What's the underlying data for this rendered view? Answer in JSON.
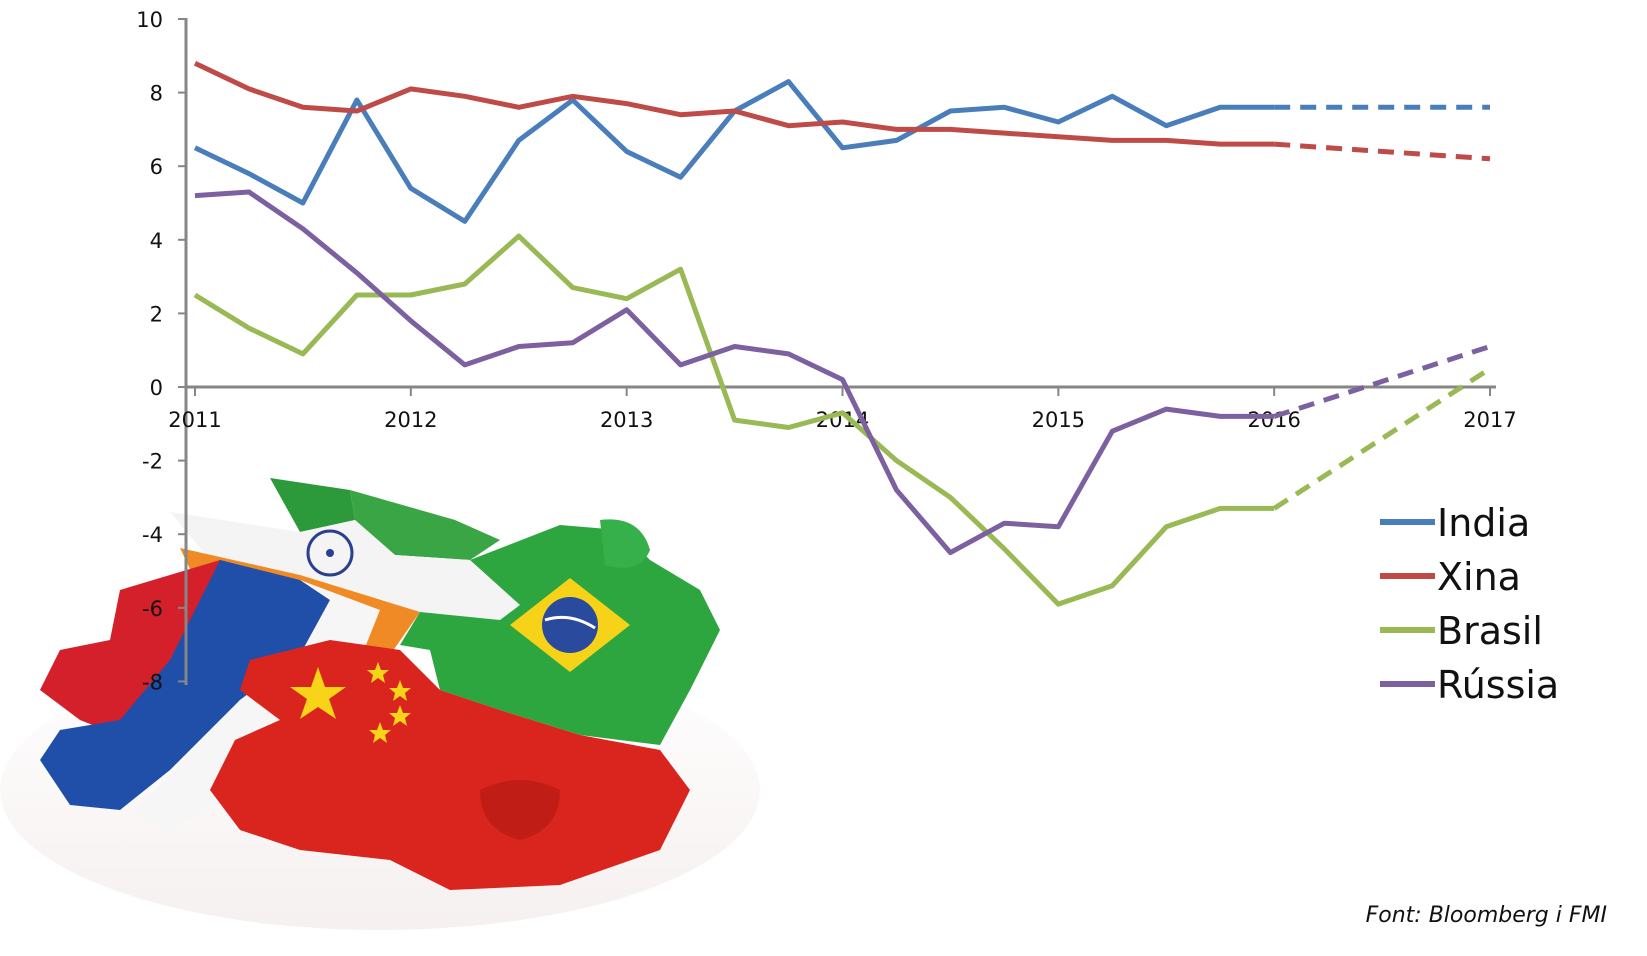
{
  "chart_data": {
    "type": "line",
    "x_ticks": [
      "2011",
      "2012",
      "2013",
      "2014",
      "2015",
      "2016",
      "2017"
    ],
    "y_ticks": [
      "10",
      "8",
      "6",
      "4",
      "2",
      "0",
      "-2",
      "-4",
      "-6",
      "-8"
    ],
    "ylim": [
      -8,
      10
    ],
    "xlim": [
      2011,
      2017
    ],
    "grid": false,
    "legend_position": "right",
    "source": "Font: Bloomberg i FMI",
    "forecast_from": 2016.0,
    "illustration": "brics-flag-puzzle",
    "series": [
      {
        "name": "India",
        "color": "#4a7ebb",
        "x": [
          2011.0,
          2011.25,
          2011.5,
          2011.75,
          2012.0,
          2012.25,
          2012.5,
          2012.75,
          2013.0,
          2013.25,
          2013.5,
          2013.75,
          2014.0,
          2014.25,
          2014.5,
          2014.75,
          2015.0,
          2015.25,
          2015.5,
          2015.75,
          2016.0,
          2017.0
        ],
        "values": [
          6.5,
          5.8,
          5.0,
          7.8,
          5.4,
          4.5,
          6.7,
          7.8,
          6.4,
          5.7,
          7.5,
          8.3,
          6.5,
          6.7,
          7.5,
          7.6,
          7.2,
          7.9,
          7.1,
          7.6,
          7.6,
          7.6
        ]
      },
      {
        "name": "Xina",
        "color": "#be4b48",
        "x": [
          2011.0,
          2011.25,
          2011.5,
          2011.75,
          2012.0,
          2012.25,
          2012.5,
          2012.75,
          2013.0,
          2013.25,
          2013.5,
          2013.75,
          2014.0,
          2014.25,
          2014.5,
          2014.75,
          2015.0,
          2015.25,
          2015.5,
          2015.75,
          2016.0,
          2017.0
        ],
        "values": [
          8.8,
          8.1,
          7.6,
          7.5,
          8.1,
          7.9,
          7.6,
          7.9,
          7.7,
          7.4,
          7.5,
          7.1,
          7.2,
          7.0,
          7.0,
          6.9,
          6.8,
          6.7,
          6.7,
          6.6,
          6.6,
          6.2
        ]
      },
      {
        "name": "Brasil",
        "color": "#98b954",
        "x": [
          2011.0,
          2011.25,
          2011.5,
          2011.75,
          2012.0,
          2012.25,
          2012.5,
          2012.75,
          2013.0,
          2013.25,
          2013.5,
          2013.75,
          2014.0,
          2014.25,
          2014.5,
          2014.75,
          2015.0,
          2015.25,
          2015.5,
          2015.75,
          2016.0,
          2017.0
        ],
        "values": [
          2.5,
          1.6,
          0.9,
          2.5,
          2.5,
          2.8,
          4.1,
          2.7,
          2.4,
          3.2,
          -0.9,
          -1.1,
          -0.7,
          -2.0,
          -3.0,
          -4.4,
          -5.9,
          -5.4,
          -3.8,
          -3.3,
          -3.3,
          0.5
        ]
      },
      {
        "name": "Rússia",
        "color": "#7d60a0",
        "x": [
          2011.0,
          2011.25,
          2011.5,
          2011.75,
          2012.0,
          2012.25,
          2012.5,
          2012.75,
          2013.0,
          2013.25,
          2013.5,
          2013.75,
          2014.0,
          2014.25,
          2014.5,
          2014.75,
          2015.0,
          2015.25,
          2015.5,
          2015.75,
          2016.0,
          2017.0
        ],
        "values": [
          5.2,
          5.3,
          4.3,
          3.1,
          1.8,
          0.6,
          1.1,
          1.2,
          2.1,
          0.6,
          1.1,
          0.9,
          0.2,
          -2.8,
          -4.5,
          -3.7,
          -3.8,
          -1.2,
          -0.6,
          -0.8,
          -0.8,
          1.1
        ]
      }
    ]
  }
}
